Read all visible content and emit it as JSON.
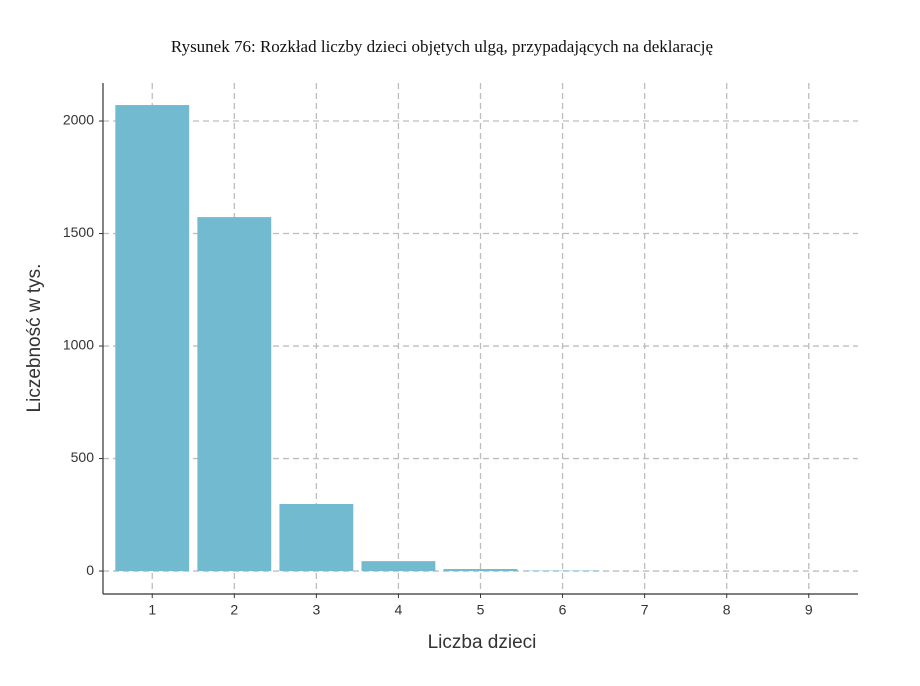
{
  "chart_data": {
    "type": "bar",
    "title": "Rysunek 76: Rozkład liczby dzieci objętych ulgą, przypadających na deklarację",
    "x_label": "Liczba dzieci",
    "y_label": "Liczebność w tys.",
    "x": [
      1,
      2,
      3,
      4,
      5,
      6,
      7,
      8,
      9
    ],
    "values": [
      2071,
      1573,
      298,
      44,
      9,
      2,
      0.5,
      0.2,
      0.1
    ],
    "color": "#72bacf",
    "xlim": [
      0.4,
      9.6
    ],
    "xticks": [
      1,
      2,
      3,
      4,
      5,
      6,
      7,
      8,
      9
    ],
    "ylim": [
      -102,
      2169
    ],
    "yticks": [
      0,
      500,
      1000,
      1500,
      2000
    ],
    "grid": true
  }
}
